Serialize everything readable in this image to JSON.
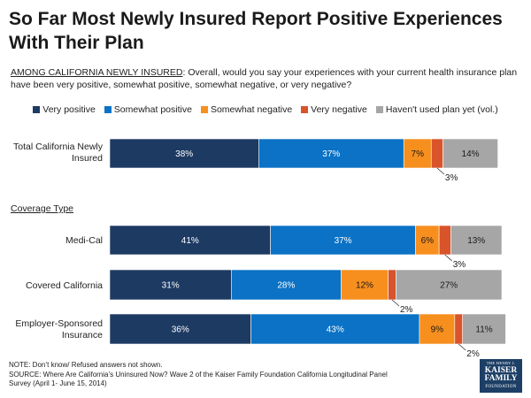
{
  "title": "So Far Most Newly Insured Report Positive Experiences With Their Plan",
  "question_lead": "AMONG CALIFORNIA NEWLY INSURED",
  "question_text": ": Overall, would you say your experiences with your current health insurance plan have been very positive, somewhat positive, somewhat negative, or very negative?",
  "section_label": "Coverage Type",
  "footer_note": "NOTE: Don’t know/ Refused answers not shown.",
  "footer_source": "SOURCE: Where Are California’s Uninsured Now? Wave 2 of the Kaiser Family Foundation California Longitudinal Panel Survey (April 1- June 15, 2014)",
  "logo": {
    "line1": "THE HENRY J.",
    "line2": "KAISER",
    "line3": "FAMILY",
    "line4": "FOUNDATION"
  },
  "chart_data": {
    "type": "bar",
    "orientation": "horizontal",
    "stacked": true,
    "categories": [
      "Total California Newly Insured",
      "Medi-Cal",
      "Covered California",
      "Employer-Sponsored Insurance"
    ],
    "series": [
      {
        "name": "Very positive",
        "color": "#1d3a63",
        "values": [
          38,
          41,
          31,
          36
        ]
      },
      {
        "name": "Somewhat positive",
        "color": "#0b72c5",
        "values": [
          37,
          37,
          28,
          43
        ]
      },
      {
        "name": "Somewhat negative",
        "color": "#f78f1e",
        "values": [
          7,
          6,
          12,
          9
        ]
      },
      {
        "name": "Very negative",
        "color": "#d9532b",
        "values": [
          3,
          3,
          2,
          2
        ]
      },
      {
        "name": "Haven't used plan yet (vol.)",
        "color": "#a6a6a6",
        "values": [
          14,
          13,
          27,
          11
        ]
      }
    ],
    "label_suffix": "%",
    "xlim": [
      0,
      100
    ]
  }
}
